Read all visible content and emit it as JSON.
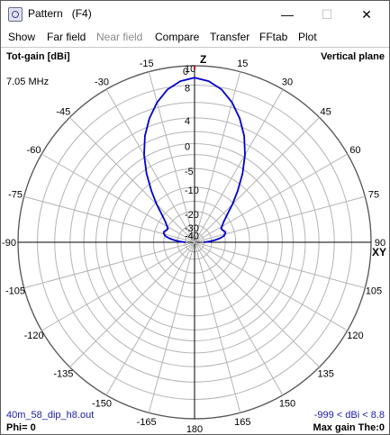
{
  "window": {
    "title": "Pattern   (F4)",
    "minimize_glyph": "—",
    "maximize_glyph": "☐",
    "close_glyph": "✕"
  },
  "menu": {
    "items": [
      {
        "label": "Show",
        "enabled": true
      },
      {
        "label": "Far field",
        "enabled": true
      },
      {
        "label": "Near field",
        "enabled": false
      },
      {
        "label": "Compare",
        "enabled": true
      },
      {
        "label": "Transfer",
        "enabled": true
      },
      {
        "label": "FFtab",
        "enabled": true
      },
      {
        "label": "Plot",
        "enabled": true
      }
    ]
  },
  "plot": {
    "top_left": "Tot-gain [dBi]",
    "top_right": "Vertical plane",
    "frequency": "7.05 MHz",
    "z_axis": "Z",
    "xy_axis": "XY",
    "file": "40m_58_dip_h8.out",
    "range": "-999 < dBi < 8.8",
    "phi": "Phi= 0",
    "max_gain": "Max gain The:0",
    "angle_labels": [
      "0",
      "15",
      "30",
      "45",
      "60",
      "75",
      "90",
      "105",
      "120",
      "135",
      "150",
      "165",
      "180",
      "-165",
      "-150",
      "-135",
      "-120",
      "-105",
      "-90",
      "-75",
      "-60",
      "-45",
      "-30",
      "-15"
    ],
    "gain_labels": [
      "10",
      "8",
      "4",
      "0",
      "-5",
      "-10",
      "-20",
      "-30",
      "-40"
    ],
    "max_gain_dbi": 8.8,
    "pattern_color": "#0000d0",
    "grid_color": "#b4b4b4"
  },
  "chart_data": {
    "type": "polar-line",
    "title": "Tot-gain [dBi]",
    "subtitle": "Vertical plane",
    "radial_unit": "dBi",
    "radial_ticks": [
      10,
      8,
      4,
      0,
      -5,
      -10,
      -20,
      -30,
      -40
    ],
    "angle_ticks_deg": [
      0,
      15,
      30,
      45,
      60,
      75,
      90,
      105,
      120,
      135,
      150,
      165,
      180,
      -165,
      -150,
      -135,
      -120,
      -105,
      -90,
      -75,
      -60,
      -45,
      -30,
      -15
    ],
    "series": [
      {
        "values_theta_deg": [
          0,
          5,
          10,
          15,
          20,
          25,
          30,
          35,
          40,
          45,
          50,
          55,
          60,
          63,
          66,
          69,
          72,
          75,
          78,
          81,
          84,
          87,
          90
        ],
        "values_dbi": [
          8.8,
          8.5,
          7.8,
          6.6,
          5.0,
          3.0,
          0.4,
          -2.8,
          -6.6,
          -10.5,
          -14.5,
          -17.5,
          -19.5,
          -20.5,
          -20.2,
          -19.5,
          -19.0,
          -19.5,
          -20.5,
          -23.0,
          -27.0,
          -33.0,
          -40.0
        ]
      }
    ]
  }
}
